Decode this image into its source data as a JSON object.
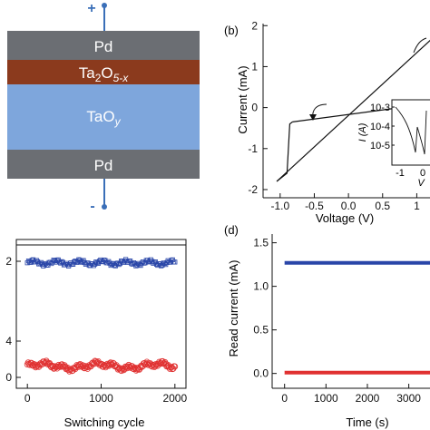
{
  "panel_a": {
    "polarity_top": "+",
    "polarity_bottom": "-",
    "layer_pd_top": "Pd",
    "layer_oxide_main": "Ta",
    "layer_oxide_sub1": "2",
    "layer_oxide_mid": "O",
    "layer_oxide_sub2": "5-x",
    "layer_tao_main": "TaO",
    "layer_tao_sub": "y",
    "layer_pd_bottom": "Pd",
    "colors": {
      "pd": "#6b6e73",
      "ta2o5": "#8b3a1d",
      "taoy": "#7ea6dc",
      "wire": "#3a6fb8"
    }
  },
  "panel_b": {
    "label": "(b)",
    "ylabel": "Current (mA)",
    "xlabel": "Voltage (V)",
    "inset_ylabel": "I (A)",
    "inset_xlabel": "V",
    "inset_x_ticks": [
      "-1",
      "0"
    ],
    "inset_y_ticks": [
      "10-3",
      "10-4",
      "10-5"
    ]
  },
  "panel_c": {
    "xlabel": "Switching cycle",
    "y_tick_labels": [
      "2",
      "4",
      "0"
    ]
  },
  "panel_d": {
    "label": "(d)",
    "ylabel": "Read current (mA)",
    "xlabel": "Time (s)"
  },
  "chart_data": [
    {
      "type": "line",
      "panel": "b",
      "xlim": [
        -1.25,
        1.3
      ],
      "ylim": [
        -2.2,
        2.05
      ],
      "x_ticks": [
        -1.0,
        -0.5,
        0.0,
        0.5,
        1.0
      ],
      "x_tick_labels": [
        "-1.0",
        "-0.5",
        "0.0",
        "0.5",
        "1"
      ],
      "y_ticks": [
        -2,
        -1,
        0,
        1,
        2
      ],
      "y_tick_labels": [
        "-2",
        "-1",
        "0",
        "1",
        "2"
      ],
      "series": [
        {
          "values": [
            [
              -1.05,
              -1.8
            ],
            [
              1.3,
              1.8
            ]
          ]
        },
        {
          "values": [
            [
              -0.82,
              -0.35
            ],
            [
              1.3,
              0.12
            ]
          ]
        },
        {
          "values": [
            [
              -1.05,
              -1.8
            ],
            [
              -0.9,
              -1.6
            ],
            [
              -0.86,
              -0.4
            ],
            [
              -0.82,
              -0.35
            ]
          ]
        }
      ]
    },
    {
      "type": "scatter",
      "panel": "c",
      "xlim": [
        -150,
        2150
      ],
      "ylim": [
        -0.4,
        13
      ],
      "x_ticks": [
        0,
        1000,
        2000
      ],
      "x_tick_labels": [
        "0",
        "1000",
        "2000"
      ],
      "series": [
        {
          "color": "#2a46a8",
          "level": 10.9
        },
        {
          "color": "#e03131",
          "level": 1.6
        }
      ]
    },
    {
      "type": "line",
      "panel": "d",
      "xlim": [
        -300,
        3600
      ],
      "ylim": [
        -0.17,
        1.6
      ],
      "x_ticks": [
        0,
        1000,
        2000,
        3000
      ],
      "x_tick_labels": [
        "0",
        "1000",
        "2000",
        "3000"
      ],
      "y_ticks": [
        0.0,
        0.5,
        1.0,
        1.5
      ],
      "y_tick_labels": [
        "0.0",
        "0.5",
        "1.0",
        "1.5"
      ],
      "series": [
        {
          "color": "#2a46a8",
          "values": [
            [
              0,
              1.27
            ],
            [
              3600,
              1.27
            ]
          ]
        },
        {
          "color": "#e03131",
          "values": [
            [
              0,
              0.01
            ],
            [
              3600,
              0.01
            ]
          ]
        }
      ]
    }
  ]
}
